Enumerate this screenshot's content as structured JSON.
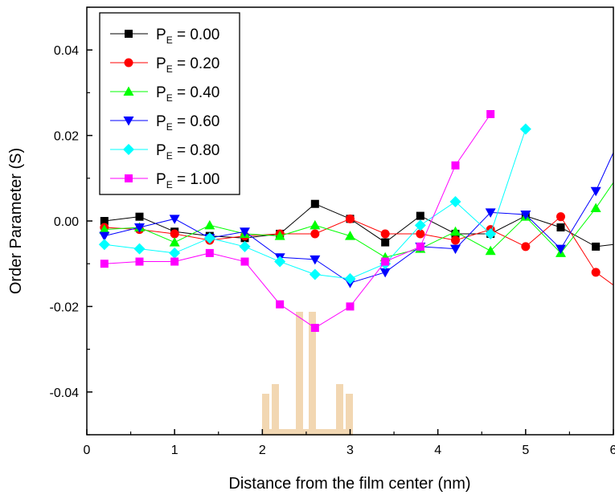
{
  "chart_data": {
    "type": "line",
    "xlabel": "Distance from the film center (nm)",
    "ylabel": "Order Parameter (S)",
    "xlim": [
      0,
      6
    ],
    "ylim": [
      -0.05,
      0.05
    ],
    "x_ticks": [
      0,
      1,
      2,
      3,
      4,
      5,
      6
    ],
    "y_ticks": [
      -0.04,
      -0.02,
      0.0,
      0.02,
      0.04
    ],
    "x_tick_labels": [
      "0",
      "1",
      "2",
      "3",
      "4",
      "5",
      "6"
    ],
    "y_tick_labels": [
      "-0.04",
      "-0.02",
      "0.00",
      "0.02",
      "0.04"
    ],
    "grid": false,
    "legend_position": "top-left",
    "series": [
      {
        "name_main": "P",
        "name_sub": "E",
        "name_value": " = 0.00",
        "color": "#000000",
        "marker": "square",
        "x": [
          0.2,
          0.6,
          1.0,
          1.4,
          1.8,
          2.2,
          2.6,
          3.0,
          3.4,
          3.8,
          4.2,
          4.6,
          5.0,
          5.4,
          5.8,
          6.2
        ],
        "y": [
          0.0,
          0.001,
          -0.0025,
          -0.0035,
          -0.004,
          -0.003,
          0.004,
          0.0005,
          -0.005,
          0.0012,
          -0.003,
          -0.003,
          0.0012,
          -0.0015,
          -0.006,
          -0.005
        ]
      },
      {
        "name_main": "P",
        "name_sub": "E",
        "name_value": " = 0.20",
        "color": "#ff0000",
        "marker": "circle",
        "x": [
          0.2,
          0.6,
          1.0,
          1.4,
          1.8,
          2.2,
          2.6,
          3.0,
          3.4,
          3.8,
          4.2,
          4.6,
          5.0,
          5.4,
          5.8,
          6.2
        ],
        "y": [
          -0.0015,
          -0.002,
          -0.003,
          -0.0045,
          -0.0035,
          -0.003,
          -0.003,
          0.0005,
          -0.003,
          -0.003,
          -0.0045,
          -0.002,
          -0.006,
          0.001,
          -0.012,
          -0.018
        ]
      },
      {
        "name_main": "P",
        "name_sub": "E",
        "name_value": " = 0.40",
        "color": "#00ff00",
        "marker": "triangle-up",
        "x": [
          0.2,
          0.6,
          1.0,
          1.4,
          1.8,
          2.2,
          2.6,
          3.0,
          3.4,
          3.8,
          4.2,
          4.6,
          5.0,
          5.4,
          5.8,
          6.2
        ],
        "y": [
          -0.002,
          -0.0015,
          -0.005,
          -0.001,
          -0.003,
          -0.0035,
          -0.001,
          -0.0035,
          -0.0085,
          -0.0065,
          -0.0025,
          -0.007,
          0.001,
          -0.0075,
          0.003,
          0.015
        ]
      },
      {
        "name_main": "P",
        "name_sub": "E",
        "name_value": " = 0.60",
        "color": "#0000ff",
        "marker": "triangle-down",
        "x": [
          0.2,
          0.6,
          1.0,
          1.4,
          1.8,
          2.2,
          2.6,
          3.0,
          3.4,
          3.8,
          4.2,
          4.6,
          5.0,
          5.4,
          5.8,
          6.2
        ],
        "y": [
          -0.0035,
          -0.0015,
          0.0005,
          -0.004,
          -0.0025,
          -0.0085,
          -0.009,
          -0.0145,
          -0.012,
          -0.006,
          -0.0065,
          0.002,
          0.0015,
          -0.0065,
          0.007,
          0.025
        ]
      },
      {
        "name_main": "P",
        "name_sub": "E",
        "name_value": " = 0.80",
        "color": "#00ffff",
        "marker": "diamond",
        "x": [
          0.2,
          0.6,
          1.0,
          1.4,
          1.8,
          2.2,
          2.6,
          3.0,
          3.4,
          3.8,
          4.2,
          4.6,
          5.0
        ],
        "y": [
          -0.0055,
          -0.0065,
          -0.0075,
          -0.004,
          -0.006,
          -0.0095,
          -0.0125,
          -0.0135,
          -0.01,
          -0.001,
          0.0045,
          -0.003,
          0.0215
        ]
      },
      {
        "name_main": "P",
        "name_sub": "E",
        "name_value": " = 1.00",
        "color": "#ff00ff",
        "marker": "square",
        "x": [
          0.2,
          0.6,
          1.0,
          1.4,
          1.8,
          2.2,
          2.6,
          3.0,
          3.4,
          3.8,
          4.2,
          4.6
        ],
        "y": [
          -0.01,
          -0.0095,
          -0.0095,
          -0.0075,
          -0.0095,
          -0.0195,
          -0.025,
          -0.02,
          -0.0095,
          -0.006,
          0.013,
          0.025
        ]
      }
    ]
  }
}
